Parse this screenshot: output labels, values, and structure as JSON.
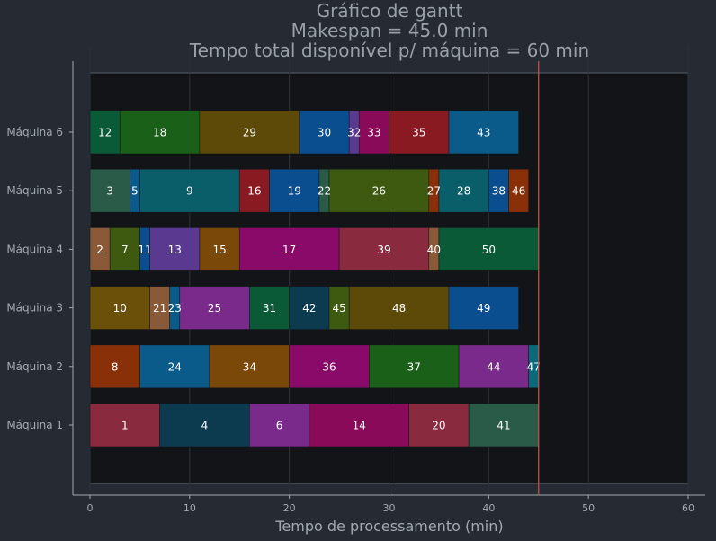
{
  "chart_data": {
    "type": "bar",
    "orientation": "horizontal-gantt",
    "title_lines": [
      "Gráfico de gantt",
      "Makespan = 45.0 min",
      "Tempo total disponível p/ máquina = 60 min"
    ],
    "xlabel": "Tempo de processamento (min)",
    "ylabel": "",
    "xlim": [
      0,
      60
    ],
    "x_ticks": [
      "0",
      "10",
      "20",
      "30",
      "40",
      "50",
      "60"
    ],
    "makespan": 45.0,
    "makespan_line_color": "#c0504d",
    "machines": [
      {
        "label": "Máquina 1",
        "tasks": [
          {
            "job": "1",
            "start": 0,
            "end": 7,
            "color": "#8a2a3e"
          },
          {
            "job": "4",
            "start": 7,
            "end": 16,
            "color": "#0c3b50"
          },
          {
            "job": "6",
            "start": 16,
            "end": 22,
            "color": "#7a2a8a"
          },
          {
            "job": "14",
            "start": 22,
            "end": 32,
            "color": "#8a0a5a"
          },
          {
            "job": "20",
            "start": 32,
            "end": 38,
            "color": "#8a2a3e"
          },
          {
            "job": "41",
            "start": 38,
            "end": 45,
            "color": "#2a5a48"
          }
        ]
      },
      {
        "label": "Máquina 2",
        "tasks": [
          {
            "job": "8",
            "start": 0,
            "end": 5,
            "color": "#8a3008"
          },
          {
            "job": "24",
            "start": 5,
            "end": 12,
            "color": "#0a5a8a"
          },
          {
            "job": "34",
            "start": 12,
            "end": 20,
            "color": "#7a4808"
          },
          {
            "job": "36",
            "start": 20,
            "end": 28,
            "color": "#8a0a6a"
          },
          {
            "job": "37",
            "start": 28,
            "end": 37,
            "color": "#1a6018"
          },
          {
            "job": "44",
            "start": 37,
            "end": 44,
            "color": "#7a2a8a"
          },
          {
            "job": "47",
            "start": 44,
            "end": 45,
            "color": "#0a6a7a"
          }
        ]
      },
      {
        "label": "Máquina 3",
        "tasks": [
          {
            "job": "10",
            "start": 0,
            "end": 6,
            "color": "#6a5008"
          },
          {
            "job": "21",
            "start": 6,
            "end": 8,
            "color": "#8a5a38"
          },
          {
            "job": "23",
            "start": 8,
            "end": 9,
            "color": "#0a5a8a"
          },
          {
            "job": "25",
            "start": 9,
            "end": 16,
            "color": "#7a2a8a"
          },
          {
            "job": "31",
            "start": 16,
            "end": 20,
            "color": "#0a5a38"
          },
          {
            "job": "42",
            "start": 20,
            "end": 24,
            "color": "#0c3b50"
          },
          {
            "job": "45",
            "start": 24,
            "end": 26,
            "color": "#3e5a10"
          },
          {
            "job": "48",
            "start": 26,
            "end": 36,
            "color": "#5e4a08"
          },
          {
            "job": "49",
            "start": 36,
            "end": 43,
            "color": "#0a4e90"
          }
        ]
      },
      {
        "label": "Máquina 4",
        "tasks": [
          {
            "job": "2",
            "start": 0,
            "end": 2,
            "color": "#8a5a38"
          },
          {
            "job": "7",
            "start": 2,
            "end": 5,
            "color": "#3e5a10"
          },
          {
            "job": "11",
            "start": 5,
            "end": 6,
            "color": "#0a4e90"
          },
          {
            "job": "13",
            "start": 6,
            "end": 11,
            "color": "#5a3a90"
          },
          {
            "job": "15",
            "start": 11,
            "end": 15,
            "color": "#7a4808"
          },
          {
            "job": "17",
            "start": 15,
            "end": 25,
            "color": "#8a0a6a"
          },
          {
            "job": "39",
            "start": 25,
            "end": 34,
            "color": "#8a2a3e"
          },
          {
            "job": "40",
            "start": 34,
            "end": 35,
            "color": "#8a5a38"
          },
          {
            "job": "50",
            "start": 35,
            "end": 45,
            "color": "#0a5a38"
          }
        ]
      },
      {
        "label": "Máquina 5",
        "tasks": [
          {
            "job": "3",
            "start": 0,
            "end": 4,
            "color": "#2a5a48"
          },
          {
            "job": "5",
            "start": 4,
            "end": 5,
            "color": "#0a5a8a"
          },
          {
            "job": "9",
            "start": 5,
            "end": 15,
            "color": "#0a5e6a"
          },
          {
            "job": "16",
            "start": 15,
            "end": 18,
            "color": "#8a1a22"
          },
          {
            "job": "19",
            "start": 18,
            "end": 23,
            "color": "#0a4e90"
          },
          {
            "job": "22",
            "start": 23,
            "end": 24,
            "color": "#2a5a48"
          },
          {
            "job": "26",
            "start": 24,
            "end": 34,
            "color": "#3e5a10"
          },
          {
            "job": "27",
            "start": 34,
            "end": 35,
            "color": "#8a3008"
          },
          {
            "job": "28",
            "start": 35,
            "end": 40,
            "color": "#0a5e6a"
          },
          {
            "job": "38",
            "start": 40,
            "end": 42,
            "color": "#0a4e90"
          },
          {
            "job": "46",
            "start": 42,
            "end": 44,
            "color": "#8a3008"
          }
        ]
      },
      {
        "label": "Máquina 6",
        "tasks": [
          {
            "job": "12",
            "start": 0,
            "end": 3,
            "color": "#0a5a38"
          },
          {
            "job": "18",
            "start": 3,
            "end": 11,
            "color": "#1a6018"
          },
          {
            "job": "29",
            "start": 11,
            "end": 21,
            "color": "#5e4a08"
          },
          {
            "job": "30",
            "start": 21,
            "end": 26,
            "color": "#0a4e90"
          },
          {
            "job": "32",
            "start": 26,
            "end": 27,
            "color": "#5a3a90"
          },
          {
            "job": "33",
            "start": 27,
            "end": 30,
            "color": "#8a0a5a"
          },
          {
            "job": "35",
            "start": 30,
            "end": 36,
            "color": "#8a1a22"
          },
          {
            "job": "43",
            "start": 36,
            "end": 43,
            "color": "#0a5a8a"
          }
        ]
      }
    ]
  }
}
